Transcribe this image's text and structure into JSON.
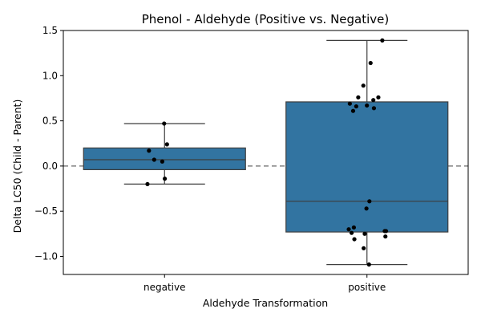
{
  "chart_data": {
    "type": "box",
    "title": "Phenol - Aldehyde (Positive vs. Negative)",
    "xlabel": "Aldehyde Transformation",
    "ylabel": "Delta LC50 (Child - Parent)",
    "categories": [
      "negative",
      "positive"
    ],
    "ylim": [
      -1.2,
      1.5
    ],
    "yticks": [
      -1.0,
      -0.5,
      0.0,
      0.5,
      1.0,
      1.5
    ],
    "ytick_labels": [
      "−1.0",
      "−0.5",
      "0.0",
      "0.5",
      "1.0",
      "1.5"
    ],
    "reference_line": {
      "y": 0.0,
      "style": "dashed",
      "color": "#808080"
    },
    "box_color": "#3274a1",
    "point_color": "#000000",
    "boxes": [
      {
        "category": "negative",
        "q1": -0.04,
        "median": 0.07,
        "q3": 0.2,
        "whisker_low": -0.2,
        "whisker_high": 0.47
      },
      {
        "category": "positive",
        "q1": -0.73,
        "median": -0.39,
        "q3": 0.71,
        "whisker_low": -1.09,
        "whisker_high": 1.39
      }
    ],
    "points": [
      {
        "category": "negative",
        "values": [
          0.47,
          0.24,
          0.17,
          0.07,
          0.05,
          -0.14,
          -0.2
        ]
      },
      {
        "category": "positive",
        "values": [
          1.39,
          1.14,
          0.89,
          0.76,
          0.76,
          0.73,
          0.69,
          0.67,
          0.66,
          0.64,
          0.61,
          -0.39,
          -0.47,
          -0.68,
          -0.7,
          -0.72,
          -0.72,
          -0.74,
          -0.75,
          -0.78,
          -0.81,
          -0.91,
          -1.09
        ]
      }
    ]
  }
}
